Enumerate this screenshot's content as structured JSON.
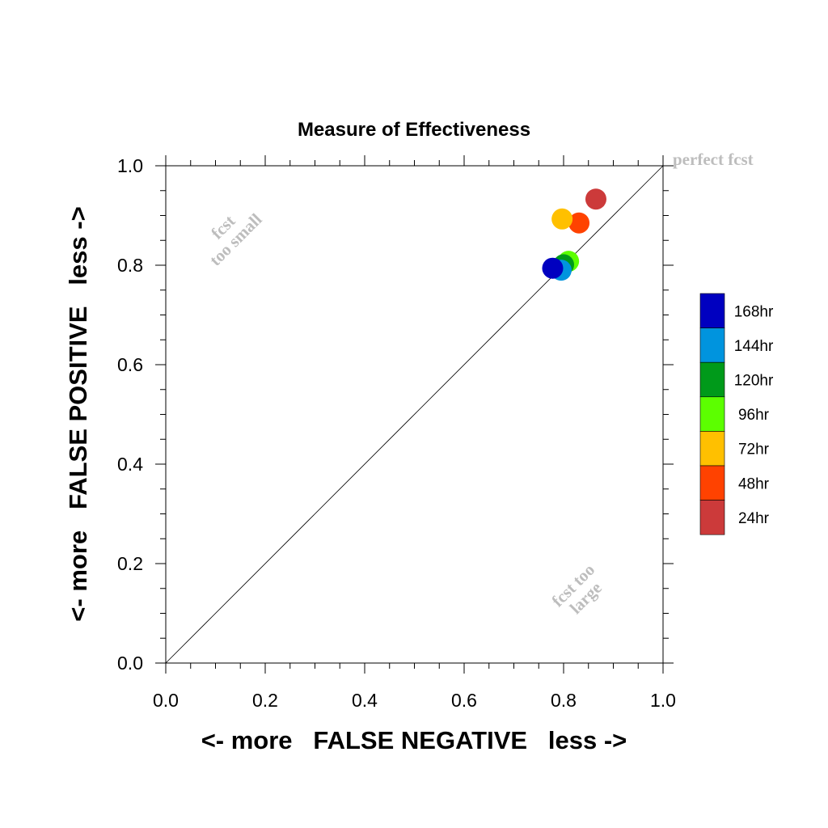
{
  "chart_data": {
    "type": "scatter",
    "title": "Measure of Effectiveness",
    "xlabel": "<- more   FALSE NEGATIVE   less ->",
    "ylabel": "<- more   FALSE POSITIVE   less ->",
    "xlim": [
      0.0,
      1.0
    ],
    "ylim": [
      0.0,
      1.0
    ],
    "xticks": [
      "0.0",
      "0.2",
      "0.4",
      "0.6",
      "0.8",
      "1.0"
    ],
    "yticks": [
      "0.0",
      "0.2",
      "0.4",
      "0.6",
      "0.8",
      "1.0"
    ],
    "diagonal_line": true,
    "grid": false,
    "legend_position": "right",
    "annotations": {
      "perfect": "perfect fcst",
      "small_line1": "fcst",
      "small_line2": "too small",
      "large_line1": "fcst too",
      "large_line2": "large"
    },
    "series": [
      {
        "name": "24hr",
        "color": "#cc3a3a",
        "x": 0.865,
        "y": 0.933
      },
      {
        "name": "48hr",
        "color": "#ff4200",
        "x": 0.831,
        "y": 0.885
      },
      {
        "name": "72hr",
        "color": "#ffc000",
        "x": 0.797,
        "y": 0.893
      },
      {
        "name": "96hr",
        "color": "#5cff00",
        "x": 0.81,
        "y": 0.808
      },
      {
        "name": "120hr",
        "color": "#009a1a",
        "x": 0.8,
        "y": 0.801
      },
      {
        "name": "144hr",
        "color": "#0094de",
        "x": 0.795,
        "y": 0.79
      },
      {
        "name": "168hr",
        "color": "#0000c0",
        "x": 0.778,
        "y": 0.794
      }
    ],
    "legend_order": [
      "168hr",
      "144hr",
      "120hr",
      "96hr",
      "72hr",
      "48hr",
      "24hr"
    ]
  }
}
